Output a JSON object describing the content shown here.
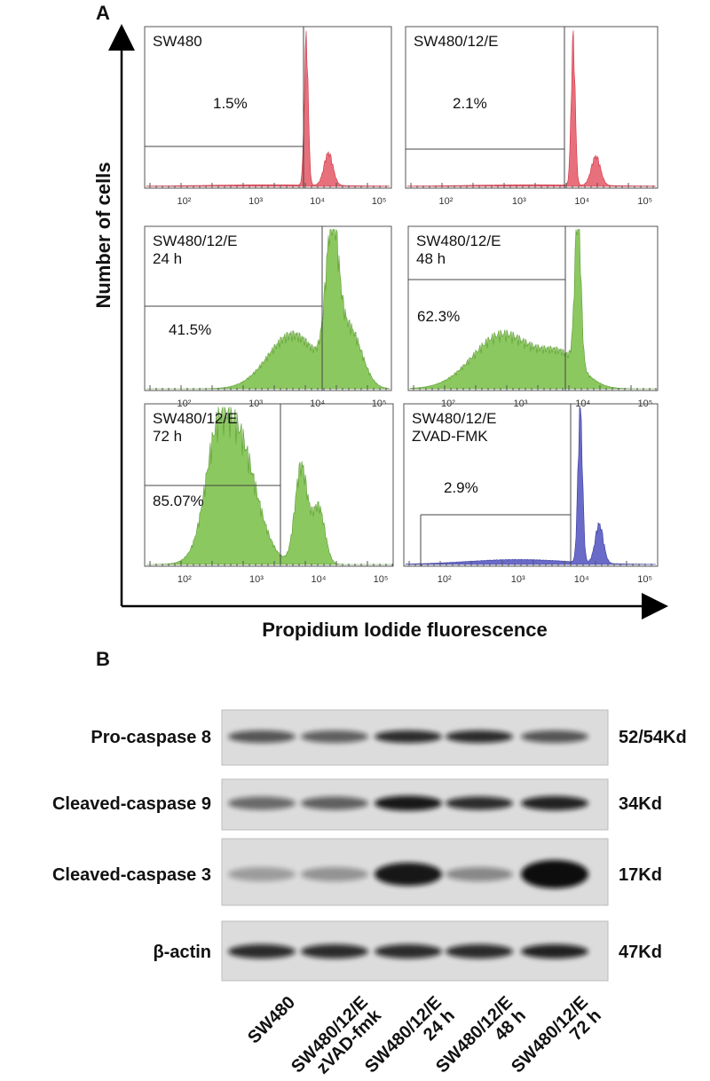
{
  "panel_a": {
    "label": "A",
    "y_axis_label": "Number of cells",
    "x_axis_label": "Propidium Iodide fluorescence",
    "x_ticks": [
      "10²",
      "10³",
      "10⁴",
      "10⁵"
    ],
    "plots": [
      {
        "title": [
          "SW480"
        ],
        "percent": "1.5%"
      },
      {
        "title": [
          "SW480/12/E"
        ],
        "percent": "2.1%"
      },
      {
        "title": [
          "SW480/12/E",
          "24 h"
        ],
        "percent": "41.5%"
      },
      {
        "title": [
          "SW480/12/E",
          "48 h"
        ],
        "percent": "62.3%"
      },
      {
        "title": [
          "SW480/12/E",
          "72 h"
        ],
        "percent": "85.07%"
      },
      {
        "title": [
          "SW480/12/E",
          "ZVAD-FMK"
        ],
        "percent": "2.9%"
      }
    ]
  },
  "panel_b": {
    "label": "B",
    "rows": [
      {
        "protein": "Pro-caspase 8",
        "size": "52/54Kd"
      },
      {
        "protein": "Cleaved-caspase 9",
        "size": "34Kd"
      },
      {
        "protein": "Cleaved-caspase 3",
        "size": "17Kd"
      },
      {
        "protein": "β-actin",
        "size": "47Kd"
      }
    ],
    "lanes": [
      [
        "SW480"
      ],
      [
        "SW480/12/E",
        "zVAD-fmk"
      ],
      [
        "SW480/12/E",
        "24 h"
      ],
      [
        "SW480/12/E",
        "48 h"
      ],
      [
        "SW480/12/E",
        "72 h"
      ]
    ]
  }
}
